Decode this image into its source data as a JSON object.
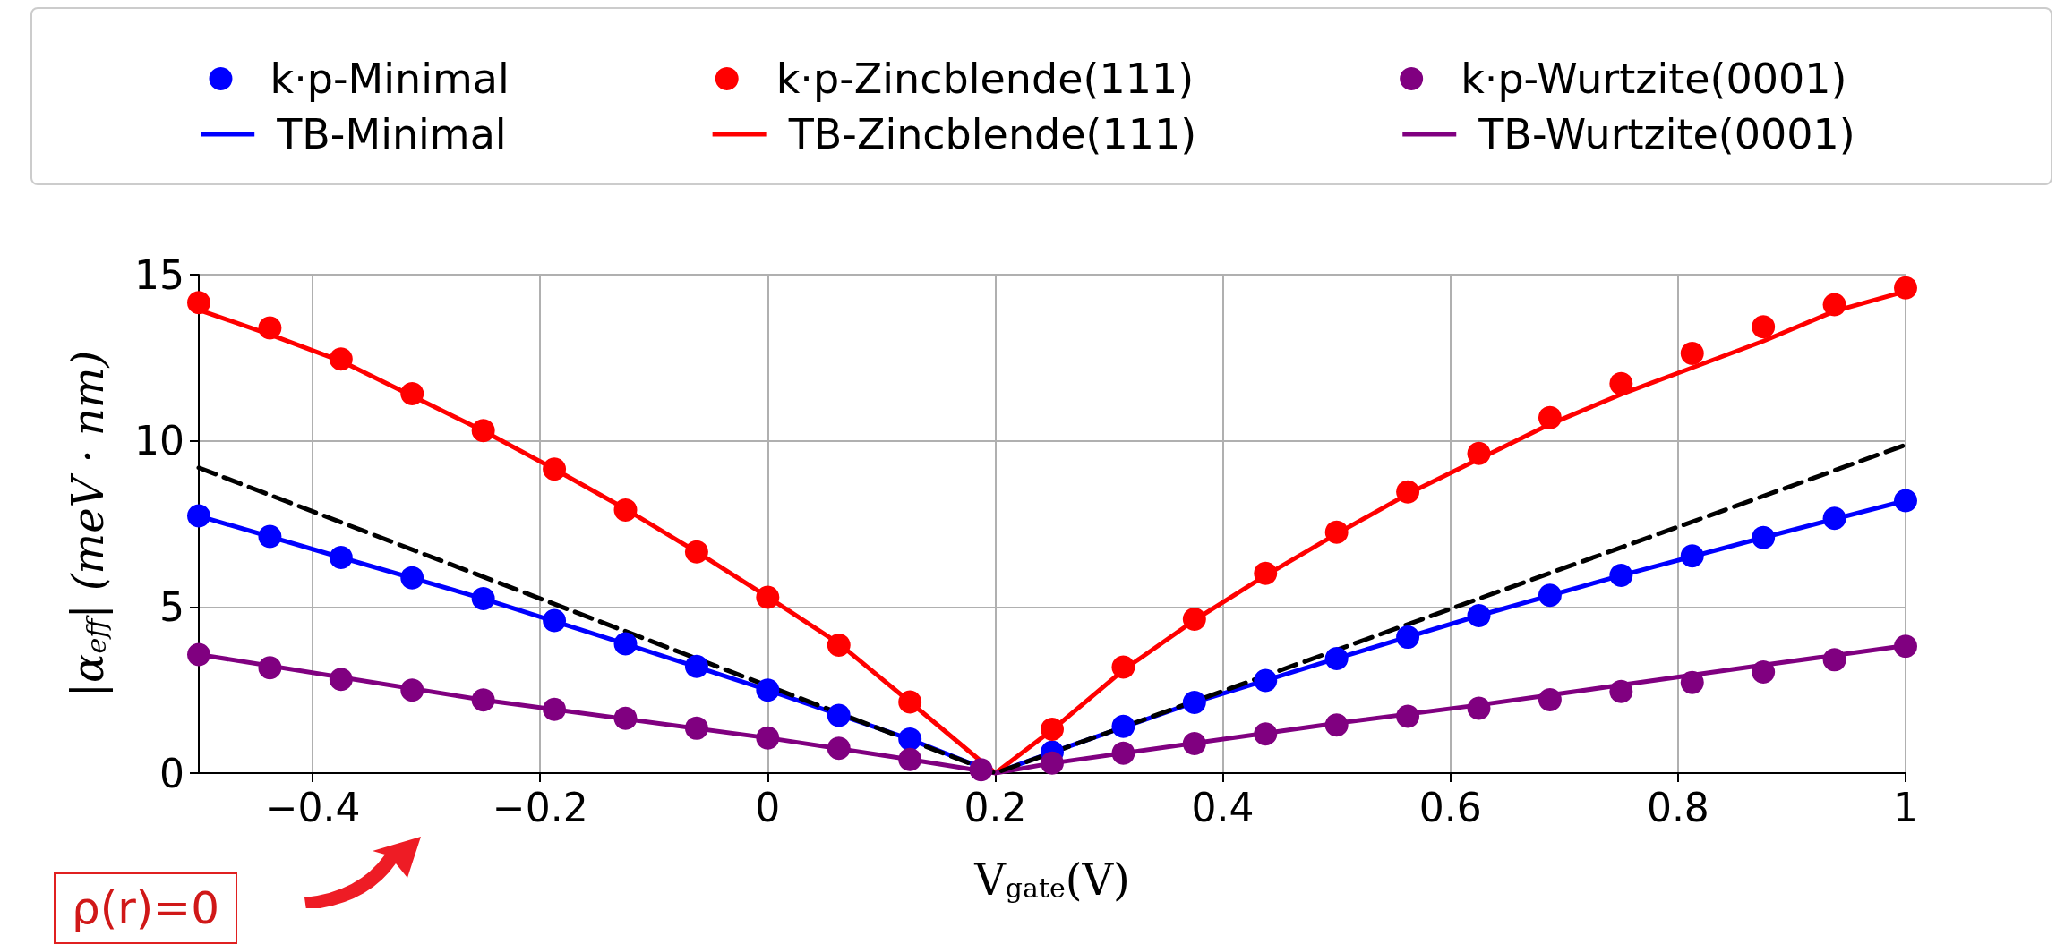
{
  "chart_data": {
    "type": "scatter",
    "xlabel": "V$_{gate}$(V)",
    "ylabel": "|α$_{eff}$| (meV · nm)",
    "annotations": [
      "ρ(r)=0"
    ],
    "x": [
      -0.5,
      -0.4375,
      -0.375,
      -0.3125,
      -0.25,
      -0.1875,
      -0.125,
      -0.0625,
      0,
      0.0625,
      0.125,
      0.1875,
      0.25,
      0.3125,
      0.375,
      0.4375,
      0.5,
      0.5625,
      0.625,
      0.6875,
      0.75,
      0.8125,
      0.875,
      0.9375,
      1
    ],
    "series": [
      {
        "name": "k·p-Minimal",
        "color": "#0000ff",
        "marker": "circle",
        "values": [
          7.74,
          7.12,
          6.49,
          5.88,
          5.25,
          4.59,
          3.89,
          3.21,
          2.5,
          1.74,
          1.02,
          null,
          0.63,
          1.41,
          2.13,
          2.79,
          3.45,
          4.09,
          4.74,
          5.35,
          5.95,
          6.54,
          7.09,
          7.67,
          8.2
        ]
      },
      {
        "name": "k·p-Zincblende(111)",
        "color": "#ff0000",
        "marker": "circle",
        "values": [
          14.16,
          13.4,
          12.46,
          11.42,
          10.31,
          9.15,
          7.92,
          6.66,
          5.29,
          3.85,
          2.14,
          null,
          1.32,
          3.19,
          4.63,
          6.01,
          7.25,
          8.46,
          9.62,
          10.7,
          11.72,
          12.63,
          13.43,
          14.1,
          14.6
        ]
      },
      {
        "name": "k·p-Wurtzite(0001)",
        "color": "#800080",
        "marker": "circle",
        "values": [
          3.57,
          3.17,
          2.82,
          2.5,
          2.2,
          1.92,
          1.65,
          1.35,
          1.06,
          0.75,
          0.41,
          0.1,
          0.3,
          0.6,
          0.89,
          1.18,
          1.45,
          1.71,
          1.95,
          2.21,
          2.46,
          2.73,
          3.04,
          3.41,
          3.82
        ]
      },
      {
        "name": "TB-Minimal",
        "type": "line",
        "color": "#0000ff",
        "marker": "none",
        "line_style": "solid",
        "x": [
          -0.5,
          -0.375,
          -0.25,
          -0.125,
          0,
          0.125,
          0.2,
          0.25,
          0.375,
          0.5,
          0.625,
          0.75,
          0.875,
          1
        ],
        "values": [
          7.74,
          6.49,
          5.25,
          3.89,
          2.5,
          1.02,
          0,
          0.63,
          2.13,
          3.45,
          4.74,
          5.95,
          7.09,
          8.2
        ]
      },
      {
        "name": "TB-Zincblende(111)",
        "type": "line",
        "color": "#ff0000",
        "marker": "none",
        "line_style": "solid",
        "x": [
          -0.5,
          -0.4375,
          -0.375,
          -0.3125,
          -0.25,
          -0.1875,
          -0.125,
          -0.0625,
          0,
          0.0625,
          0.125,
          0.2,
          0.25,
          0.3125,
          0.375,
          0.4375,
          0.5,
          0.5625,
          0.625,
          0.6875,
          0.75,
          0.8125,
          0.875,
          0.9375,
          1
        ],
        "values": [
          13.94,
          13.2,
          12.4,
          11.35,
          10.3,
          9.15,
          7.95,
          6.66,
          5.3,
          3.9,
          2.14,
          0,
          1.3,
          3.1,
          4.6,
          5.95,
          7.2,
          8.4,
          9.45,
          10.5,
          11.4,
          12.2,
          13.0,
          13.9,
          14.5
        ]
      },
      {
        "name": "TB-Wurtzite(0001)",
        "type": "line",
        "color": "#800080",
        "marker": "none",
        "line_style": "solid",
        "x": [
          -0.5,
          -0.25,
          0,
          0.125,
          0.2,
          0.25,
          0.5,
          0.625,
          0.75,
          0.875,
          1
        ],
        "values": [
          3.57,
          2.2,
          1.06,
          0.41,
          0,
          0.3,
          1.5,
          2.05,
          2.65,
          3.25,
          3.84
        ]
      },
      {
        "type": "line",
        "color": "#000000",
        "marker": "none",
        "line_style": "dashed",
        "x": [
          -0.5,
          0.2,
          1
        ],
        "values": [
          9.19,
          0,
          9.88
        ]
      }
    ],
    "xlim": [
      -0.5,
      1
    ],
    "xticks": [
      -0.4,
      -0.2,
      0,
      0.2,
      0.4,
      0.6,
      0.8,
      1
    ],
    "ylim": [
      0,
      15
    ],
    "yticks": [
      0,
      5,
      10,
      15
    ],
    "grid": true,
    "legend": "top"
  }
}
